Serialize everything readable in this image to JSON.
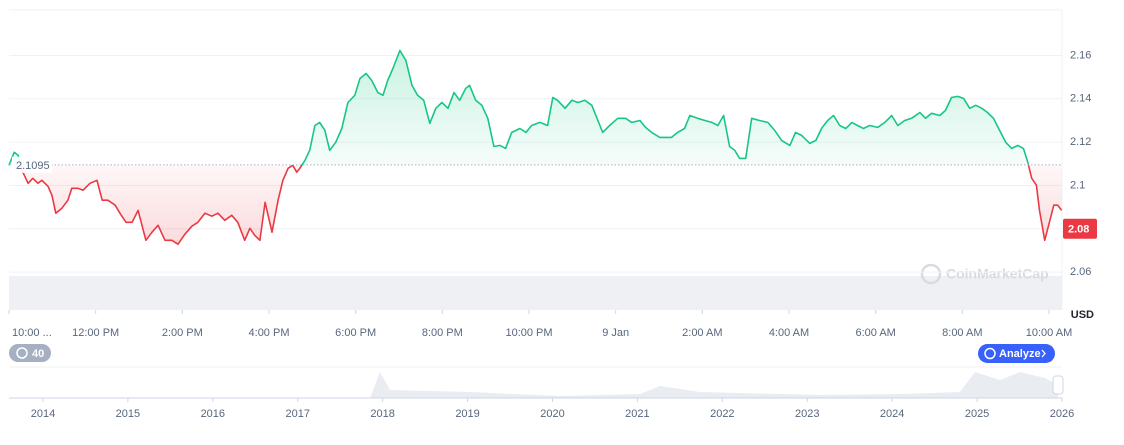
{
  "chart_data": {
    "type": "area",
    "x": [
      0,
      0.12,
      0.21,
      0.3,
      0.44,
      0.55,
      0.67,
      0.76,
      0.9,
      0.99,
      1.08,
      1.22,
      1.36,
      1.45,
      1.59,
      1.71,
      1.87,
      2.03,
      2.15,
      2.28,
      2.45,
      2.56,
      2.7,
      2.84,
      2.98,
      3.16,
      3.3,
      3.44,
      3.6,
      3.76,
      3.9,
      4.06,
      4.22,
      4.36,
      4.52,
      4.68,
      4.82,
      4.98,
      5.14,
      5.28,
      5.44,
      5.56,
      5.67,
      5.79,
      5.91,
      6.07,
      6.21,
      6.32,
      6.44,
      6.55,
      6.64,
      6.71,
      6.83,
      6.94,
      7.06,
      7.17,
      7.29,
      7.4,
      7.54,
      7.68,
      7.82,
      7.98,
      8.1,
      8.24,
      8.37,
      8.51,
      8.63,
      8.74,
      8.86,
      9.02,
      9.16,
      9.3,
      9.43,
      9.57,
      9.71,
      9.85,
      9.99,
      10.13,
      10.27,
      10.4,
      10.54,
      10.63,
      10.77,
      10.91,
      11.05,
      11.19,
      11.33,
      11.46,
      11.6,
      11.79,
      11.93,
      12.06,
      12.25,
      12.43,
      12.55,
      12.66,
      12.83,
      12.99,
      13.13,
      13.29,
      13.45,
      13.59,
      13.7,
      13.86,
      14.05,
      14.23,
      14.37,
      14.56,
      14.69,
      14.83,
      15.02,
      15.29,
      15.43,
      15.59,
      15.71,
      15.89,
      16.06,
      16.22,
      16.36,
      16.49,
      16.63,
      16.75,
      16.86,
      17,
      17.14,
      17.32,
      17.51,
      17.67,
      17.83,
      18.02,
      18.15,
      18.29,
      18.48,
      18.62,
      18.75,
      18.89,
      19.03,
      19.17,
      19.31,
      19.45,
      19.58,
      19.72,
      19.86,
      20.05,
      20.21,
      20.37,
      20.51,
      20.67,
      20.83,
      21.02,
      21.15,
      21.29,
      21.48,
      21.61,
      21.75,
      21.89,
      22.03,
      22.17,
      22.31,
      22.45,
      22.58,
      22.72,
      22.86,
      23,
      23.14,
      23.28,
      23.41,
      23.51,
      23.6,
      23.71,
      23.78,
      23.9,
      24.01,
      24.11,
      24.2,
      24.29
    ],
    "values": [
      2.1093,
      2.1153,
      2.1139,
      2.107,
      2.101,
      2.1033,
      2.101,
      2.1024,
      2.0996,
      2.0955,
      2.0872,
      2.0895,
      2.0932,
      2.0987,
      2.0987,
      2.0978,
      2.101,
      2.1024,
      2.0932,
      2.0932,
      2.0909,
      2.0872,
      2.083,
      2.083,
      2.0885,
      2.0747,
      2.0784,
      2.0816,
      2.0747,
      2.0747,
      2.0729,
      2.0775,
      2.0812,
      2.083,
      2.0872,
      2.0858,
      2.0872,
      2.0839,
      2.0862,
      2.083,
      2.0747,
      2.0802,
      2.077,
      2.0747,
      2.0922,
      2.0784,
      2.0932,
      2.1024,
      2.1079,
      2.1093,
      2.1061,
      2.1079,
      2.1116,
      2.1162,
      2.1277,
      2.1291,
      2.1254,
      2.1162,
      2.1199,
      2.1263,
      2.1383,
      2.1416,
      2.1494,
      2.1517,
      2.1485,
      2.1429,
      2.1416,
      2.1485,
      2.154,
      2.1623,
      2.1577,
      2.1462,
      2.1416,
      2.1393,
      2.1287,
      2.1356,
      2.1383,
      2.1356,
      2.1429,
      2.1393,
      2.1448,
      2.1462,
      2.1393,
      2.137,
      2.131,
      2.118,
      2.1185,
      2.1171,
      2.1245,
      2.1263,
      2.1245,
      2.1277,
      2.1291,
      2.1277,
      2.1406,
      2.1393,
      2.1356,
      2.1393,
      2.1383,
      2.1393,
      2.137,
      2.13,
      2.1245,
      2.1277,
      2.131,
      2.131,
      2.1291,
      2.13,
      2.1268,
      2.1245,
      2.1222,
      2.1222,
      2.1245,
      2.1263,
      2.1323,
      2.131,
      2.13,
      2.1291,
      2.1277,
      2.1323,
      2.118,
      2.1162,
      2.1125,
      2.1125,
      2.131,
      2.13,
      2.1291,
      2.1254,
      2.1208,
      2.1185,
      2.1245,
      2.1231,
      2.1194,
      2.1208,
      2.1263,
      2.13,
      2.1323,
      2.1277,
      2.1263,
      2.1291,
      2.1277,
      2.1263,
      2.1277,
      2.1268,
      2.1291,
      2.1323,
      2.1277,
      2.13,
      2.131,
      2.1337,
      2.131,
      2.1333,
      2.1323,
      2.1346,
      2.1406,
      2.1411,
      2.1402,
      2.1356,
      2.137,
      2.1356,
      2.1337,
      2.131,
      2.1254,
      2.1199,
      2.1171,
      2.1185,
      2.1171,
      2.1107,
      2.1033,
      2.1001,
      2.0885,
      2.0747,
      2.083,
      2.0909,
      2.0909,
      2.0885
    ],
    "baseline": 2.1095,
    "current_price": 2.08,
    "color_up": "#16c784",
    "color_down": "#ea3943",
    "xlim": [
      0,
      24.3
    ],
    "xticks": [
      {
        "value": 0,
        "label": "10:00 ..."
      },
      {
        "value": 2,
        "label": "12:00 PM"
      },
      {
        "value": 4,
        "label": "2:00 PM"
      },
      {
        "value": 6,
        "label": "4:00 PM"
      },
      {
        "value": 8,
        "label": "6:00 PM"
      },
      {
        "value": 10,
        "label": "8:00 PM"
      },
      {
        "value": 12,
        "label": "10:00 PM"
      },
      {
        "value": 14,
        "label": "9 Jan"
      },
      {
        "value": 16,
        "label": "2:00 AM"
      },
      {
        "value": 18,
        "label": "4:00 AM"
      },
      {
        "value": 20,
        "label": "6:00 AM"
      },
      {
        "value": 22,
        "label": "8:00 AM"
      },
      {
        "value": 24,
        "label": "10:00 AM"
      }
    ],
    "ylim": [
      2.0425,
      2.181
    ],
    "yticks": [
      2.06,
      2.08,
      2.1,
      2.12,
      2.14,
      2.16
    ],
    "y_unit": "USD",
    "grid": true,
    "watermark": "CoinMarketCap",
    "history_badge": "40",
    "analyze_button": "Analyze",
    "navigator": {
      "xlim": [
        2013.6,
        2026
      ],
      "xticks": [
        2014,
        2015,
        2016,
        2017,
        2018,
        2019,
        2020,
        2021,
        2022,
        2023,
        2024,
        2025,
        2026
      ]
    }
  }
}
